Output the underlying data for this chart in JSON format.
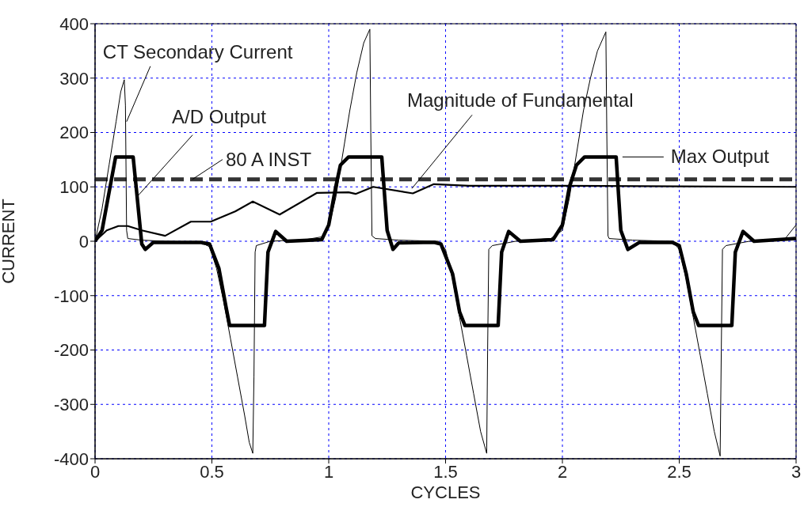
{
  "chart_data": {
    "type": "line",
    "xlabel": "CYCLES",
    "ylabel": "CURRENT",
    "xlim": [
      0,
      3
    ],
    "ylim": [
      -400,
      400
    ],
    "xticks": [
      0,
      0.5,
      1,
      1.5,
      2,
      2.5,
      3
    ],
    "yticks": [
      -400,
      -300,
      -200,
      -100,
      0,
      100,
      200,
      300,
      400
    ],
    "grid": true,
    "marker": "none",
    "line_style": "solid",
    "series": [
      {
        "color": "#000000",
        "x": [
          0,
          0.03,
          0.06,
          0.09,
          0.11,
          0.125,
          0.13,
          0.135,
          0.14,
          0.2,
          0.3,
          0.45,
          0.49,
          0.52,
          0.55,
          0.58,
          0.61,
          0.64,
          0.66,
          0.675,
          0.68,
          0.685,
          0.69,
          0.75,
          0.9,
          0.97,
          1.0,
          1.03,
          1.06,
          1.09,
          1.12,
          1.15,
          1.176,
          1.18,
          1.185,
          1.2,
          1.3,
          1.47,
          1.5,
          1.53,
          1.56,
          1.59,
          1.62,
          1.65,
          1.676,
          1.68,
          1.685,
          1.7,
          1.8,
          1.95,
          2.0,
          2.03,
          2.06,
          2.09,
          2.12,
          2.15,
          2.186,
          2.19,
          2.195,
          2.2,
          2.3,
          2.47,
          2.5,
          2.53,
          2.56,
          2.59,
          2.62,
          2.65,
          2.675,
          2.68,
          2.685,
          2.7,
          2.8,
          2.95,
          3.0
        ],
        "values": [
          0,
          60,
          140,
          220,
          275,
          297,
          250,
          20,
          5,
          2,
          0,
          -2,
          -10,
          -50,
          -110,
          -180,
          -250,
          -320,
          -370,
          -390,
          -250,
          -20,
          -8,
          0,
          3,
          8,
          25,
          80,
          160,
          240,
          310,
          365,
          390,
          200,
          10,
          5,
          2,
          0,
          -15,
          -70,
          -140,
          -210,
          -280,
          -350,
          -390,
          -200,
          -15,
          -8,
          0,
          5,
          20,
          80,
          160,
          240,
          300,
          350,
          385,
          200,
          10,
          5,
          2,
          0,
          -15,
          -70,
          -140,
          -210,
          -280,
          -350,
          -395,
          -200,
          -15,
          -8,
          0,
          3,
          30
        ]
      },
      {
        "color": "#000000",
        "x": [
          0,
          0.03,
          0.06,
          0.088,
          0.163,
          0.18,
          0.2,
          0.215,
          0.25,
          0.45,
          0.49,
          0.53,
          0.56,
          0.576,
          0.725,
          0.74,
          0.773,
          0.82,
          0.97,
          1.0,
          1.03,
          1.05,
          1.085,
          1.227,
          1.25,
          1.275,
          1.3,
          1.45,
          1.48,
          1.53,
          1.56,
          1.583,
          1.725,
          1.74,
          1.77,
          1.82,
          1.96,
          2.0,
          2.03,
          2.06,
          2.095,
          2.23,
          2.25,
          2.28,
          2.33,
          2.47,
          2.5,
          2.53,
          2.56,
          2.583,
          2.725,
          2.74,
          2.773,
          2.82,
          3.0
        ],
        "values": [
          0,
          20,
          90,
          155,
          155,
          82,
          -5,
          -15,
          -2,
          -2,
          -5,
          -50,
          -120,
          -155,
          -155,
          -20,
          18,
          0,
          3,
          30,
          100,
          140,
          155,
          155,
          20,
          -15,
          -3,
          -2,
          -5,
          -60,
          -130,
          -155,
          -155,
          -20,
          18,
          0,
          3,
          30,
          100,
          140,
          155,
          155,
          20,
          -15,
          -2,
          -2,
          -8,
          -60,
          -130,
          -155,
          -155,
          -20,
          18,
          0,
          5
        ]
      },
      {
        "color": "#000000",
        "x": [
          0,
          0.05,
          0.1,
          0.14,
          0.2,
          0.3,
          0.41,
          0.495,
          0.6,
          0.675,
          0.79,
          0.95,
          1.085,
          1.115,
          1.19,
          1.36,
          1.45,
          1.6,
          2.0,
          2.5,
          3.0
        ],
        "values": [
          0,
          20,
          28,
          28,
          20,
          10,
          36,
          36,
          55,
          73,
          49,
          89,
          90,
          87,
          100,
          88,
          105,
          102,
          102,
          101,
          100
        ]
      }
    ],
    "ref_lines": [
      {
        "axis": "y",
        "value": 114,
        "label": "80 A INST",
        "color": "#333333",
        "line_style": "dashed"
      }
    ],
    "annotations": [
      {
        "text": "CT Secondary Current",
        "x": 0.135,
        "y": 220
      },
      {
        "text": "A/D Output",
        "x": 0.18,
        "y": 82
      },
      {
        "text": "Magnitude of Fundamental",
        "x": 1.356,
        "y": 97
      },
      {
        "text": "Max Output",
        "x": 2.23,
        "y": 155
      }
    ]
  }
}
